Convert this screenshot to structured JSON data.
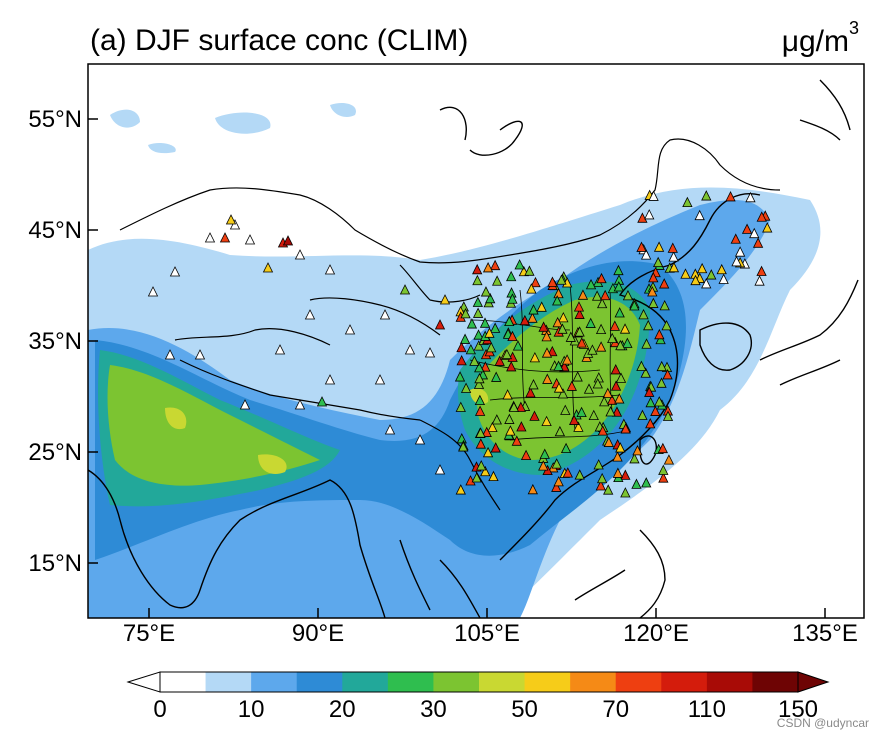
{
  "title": "(a) DJF surface conc (CLIM)",
  "units": {
    "base": "μg/m",
    "sup": "3"
  },
  "lat_labels": [
    "55°N",
    "45°N",
    "35°N",
    "25°N",
    "15°N"
  ],
  "lon_labels": [
    "75°E",
    "90°E",
    "105°E",
    "120°E",
    "135°E"
  ],
  "colorbar": {
    "labels": [
      "0",
      "10",
      "20",
      "30",
      "50",
      "70",
      "110",
      "150"
    ],
    "colors": [
      "#ffffff",
      "#b4d9f6",
      "#5da8ec",
      "#2e8bd6",
      "#22a89a",
      "#2fbe4f",
      "#7cc431",
      "#c9d832",
      "#f6cc19",
      "#f58a16",
      "#ee3f11",
      "#d41c0c",
      "#a80b06",
      "#6e0404"
    ]
  },
  "watermark": "CSDN @udyncar"
}
